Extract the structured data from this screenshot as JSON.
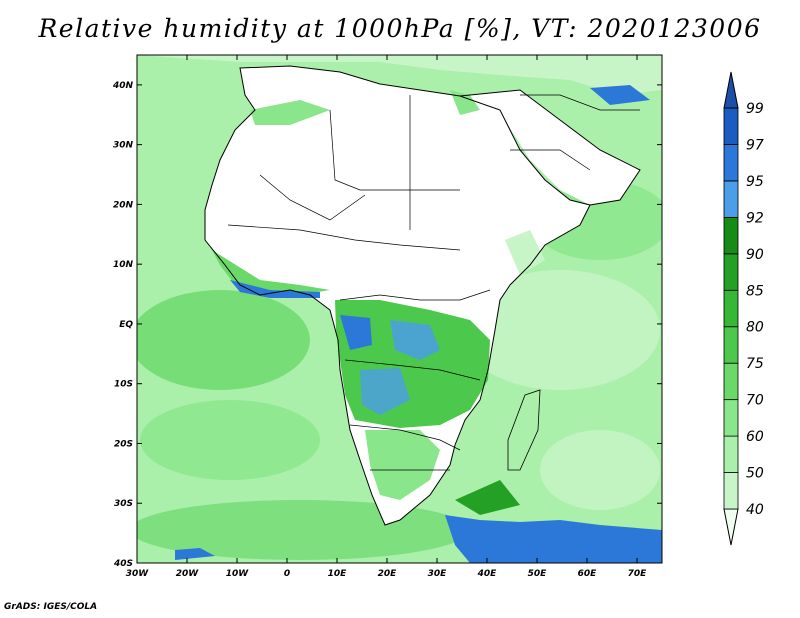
{
  "title": "Relative humidity at 1000hPa [%], VT: 2020123006",
  "credit": "GrADS: IGES/COLA",
  "map": {
    "lon_range": [
      -30,
      75
    ],
    "lat_range": [
      -40,
      45
    ],
    "lat_ticks": [
      {
        "value": 40,
        "label": "40N"
      },
      {
        "value": 30,
        "label": "30N"
      },
      {
        "value": 20,
        "label": "20N"
      },
      {
        "value": 10,
        "label": "10N"
      },
      {
        "value": 0,
        "label": "EQ"
      },
      {
        "value": -10,
        "label": "10S"
      },
      {
        "value": -20,
        "label": "20S"
      },
      {
        "value": -30,
        "label": "30S"
      },
      {
        "value": -40,
        "label": "40S"
      }
    ],
    "lon_ticks": [
      {
        "value": -30,
        "label": "30W"
      },
      {
        "value": -20,
        "label": "20W"
      },
      {
        "value": -10,
        "label": "10W"
      },
      {
        "value": 0,
        "label": "0"
      },
      {
        "value": 10,
        "label": "10E"
      },
      {
        "value": 20,
        "label": "20E"
      },
      {
        "value": 30,
        "label": "30E"
      },
      {
        "value": 40,
        "label": "40E"
      },
      {
        "value": 50,
        "label": "50E"
      },
      {
        "value": 60,
        "label": "60E"
      },
      {
        "value": 70,
        "label": "70E"
      }
    ]
  },
  "colorbar": {
    "levels": [
      "40",
      "50",
      "60",
      "70",
      "75",
      "80",
      "85",
      "90",
      "92",
      "95",
      "97",
      "99"
    ],
    "colors": [
      "#f0fff0",
      "#c8f5c8",
      "#aaefaa",
      "#8ae68a",
      "#6ad96a",
      "#4cc94c",
      "#36b836",
      "#24a024",
      "#178b17",
      "#4b9ee8",
      "#2b78d8",
      "#1a5cc0",
      "#1b4fa8"
    ]
  }
}
